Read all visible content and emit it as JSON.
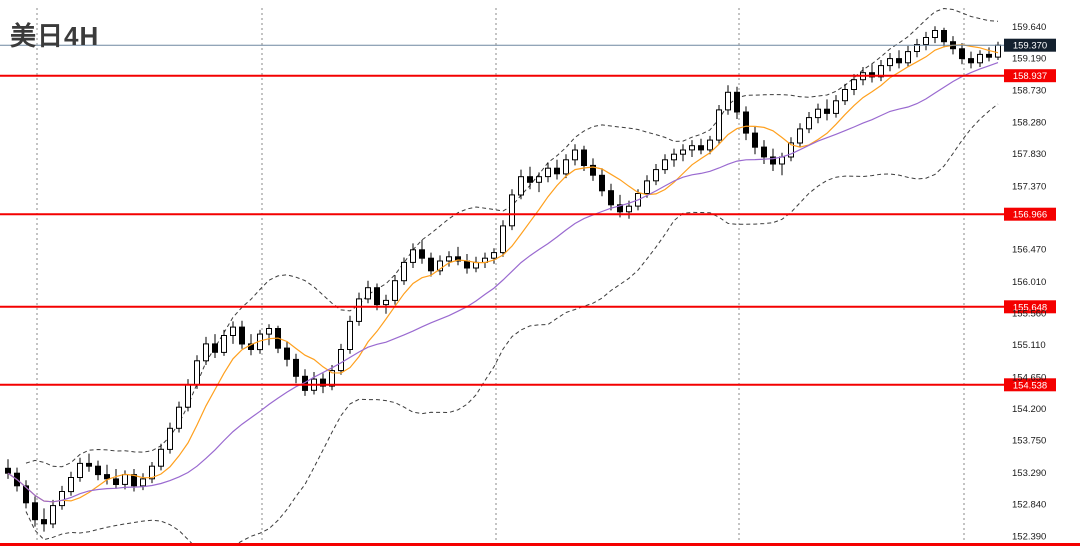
{
  "window": {
    "title": "美日4H"
  },
  "chart_data": {
    "type": "candlestick",
    "title": "美日4H",
    "current_price": {
      "label": "159.370",
      "price": 159.37
    },
    "price_scale": {
      "max": 159.9,
      "min": 152.33
    },
    "y_tick_labels": [
      "159.640",
      "159.190",
      "158.730",
      "158.280",
      "157.830",
      "157.370",
      "156.470",
      "156.010",
      "155.560",
      "155.110",
      "154.650",
      "154.200",
      "153.750",
      "153.290",
      "152.840",
      "152.390"
    ],
    "levels": [
      {
        "label": "158.937",
        "price": 158.937
      },
      {
        "label": "156.966",
        "price": 156.966
      },
      {
        "label": "155.648",
        "price": 155.648
      },
      {
        "label": "154.538",
        "price": 154.538
      }
    ],
    "separators_at_candle": [
      3,
      28,
      54,
      81,
      106
    ],
    "indicators": {
      "ma_fast": {
        "type": "sma",
        "period": 7
      },
      "ma_slow": {
        "type": "sma",
        "period": 20
      },
      "bollinger": {
        "period": 20,
        "deviation": 2
      }
    },
    "colors": {
      "level_line": "#f40000",
      "level_box": "#f40000",
      "level_text": "#ffffff",
      "current_line": "#6e87a0",
      "current_box": "#13202e",
      "current_text": "#ffffff",
      "grid": "#8a8a8a",
      "band": "#3c3c3c",
      "ma_fast": "#ffa01e",
      "ma_slow": "#9a6ad0",
      "axis_text": "#1a1a1a",
      "up_fill": "#ffffff",
      "down_fill": "#000000",
      "outline": "#000000"
    },
    "candles": [
      [
        153.35,
        153.48,
        153.2,
        153.28
      ],
      [
        153.28,
        153.36,
        153.02,
        153.1
      ],
      [
        153.1,
        153.18,
        152.78,
        152.86
      ],
      [
        152.86,
        152.95,
        152.52,
        152.62
      ],
      [
        152.62,
        152.78,
        152.45,
        152.56
      ],
      [
        152.56,
        152.9,
        152.5,
        152.82
      ],
      [
        152.82,
        153.1,
        152.76,
        153.02
      ],
      [
        153.02,
        153.3,
        152.96,
        153.22
      ],
      [
        153.22,
        153.5,
        153.16,
        153.42
      ],
      [
        153.42,
        153.56,
        153.3,
        153.38
      ],
      [
        153.38,
        153.46,
        153.18,
        153.26
      ],
      [
        153.26,
        153.4,
        153.12,
        153.2
      ],
      [
        153.2,
        153.34,
        153.06,
        153.12
      ],
      [
        153.12,
        153.32,
        153.05,
        153.26
      ],
      [
        153.26,
        153.34,
        153.02,
        153.1
      ],
      [
        153.1,
        153.28,
        153.04,
        153.2
      ],
      [
        153.2,
        153.44,
        153.14,
        153.38
      ],
      [
        153.38,
        153.7,
        153.32,
        153.62
      ],
      [
        153.62,
        154.0,
        153.56,
        153.92
      ],
      [
        153.92,
        154.3,
        153.86,
        154.22
      ],
      [
        154.22,
        154.62,
        154.16,
        154.54
      ],
      [
        154.54,
        154.96,
        154.48,
        154.88
      ],
      [
        154.88,
        155.22,
        154.82,
        155.12
      ],
      [
        155.12,
        155.26,
        154.92,
        155.0
      ],
      [
        155.0,
        155.32,
        154.95,
        155.24
      ],
      [
        155.24,
        155.44,
        155.12,
        155.36
      ],
      [
        155.36,
        155.45,
        155.05,
        155.12
      ],
      [
        155.12,
        155.26,
        154.96,
        155.04
      ],
      [
        155.04,
        155.32,
        154.98,
        155.26
      ],
      [
        155.26,
        155.4,
        155.1,
        155.34
      ],
      [
        155.34,
        155.38,
        154.99,
        155.06
      ],
      [
        155.06,
        155.16,
        154.8,
        154.9
      ],
      [
        154.9,
        154.98,
        154.56,
        154.66
      ],
      [
        154.66,
        154.76,
        154.38,
        154.46
      ],
      [
        154.46,
        154.72,
        154.4,
        154.62
      ],
      [
        154.62,
        154.7,
        154.42,
        154.52
      ],
      [
        154.52,
        154.82,
        154.46,
        154.74
      ],
      [
        154.74,
        155.12,
        154.68,
        155.04
      ],
      [
        155.04,
        155.52,
        154.98,
        155.44
      ],
      [
        155.44,
        155.85,
        155.38,
        155.76
      ],
      [
        155.76,
        156.02,
        155.7,
        155.92
      ],
      [
        155.92,
        155.98,
        155.6,
        155.68
      ],
      [
        155.68,
        155.82,
        155.55,
        155.74
      ],
      [
        155.74,
        156.1,
        155.68,
        156.02
      ],
      [
        156.02,
        156.35,
        155.96,
        156.28
      ],
      [
        156.28,
        156.55,
        156.2,
        156.46
      ],
      [
        156.46,
        156.6,
        156.26,
        156.34
      ],
      [
        156.34,
        156.42,
        156.08,
        156.16
      ],
      [
        156.16,
        156.38,
        156.1,
        156.3
      ],
      [
        156.3,
        156.44,
        156.22,
        156.36
      ],
      [
        156.36,
        156.5,
        156.24,
        156.3
      ],
      [
        156.3,
        156.4,
        156.12,
        156.2
      ],
      [
        156.2,
        156.36,
        156.14,
        156.28
      ],
      [
        156.28,
        156.42,
        156.2,
        156.34
      ],
      [
        156.34,
        156.48,
        156.26,
        156.42
      ],
      [
        156.42,
        156.88,
        156.36,
        156.8
      ],
      [
        156.8,
        157.32,
        156.74,
        157.24
      ],
      [
        157.24,
        157.6,
        157.18,
        157.5
      ],
      [
        157.5,
        157.64,
        157.32,
        157.42
      ],
      [
        157.42,
        157.56,
        157.28,
        157.5
      ],
      [
        157.5,
        157.7,
        157.42,
        157.62
      ],
      [
        157.62,
        157.74,
        157.46,
        157.54
      ],
      [
        157.54,
        157.82,
        157.48,
        157.74
      ],
      [
        157.74,
        157.96,
        157.66,
        157.88
      ],
      [
        157.88,
        157.94,
        157.58,
        157.66
      ],
      [
        157.66,
        157.76,
        157.44,
        157.52
      ],
      [
        157.52,
        157.62,
        157.22,
        157.3
      ],
      [
        157.3,
        157.4,
        157.02,
        157.1
      ],
      [
        157.1,
        157.24,
        156.92,
        157.0
      ],
      [
        157.0,
        157.16,
        156.9,
        157.08
      ],
      [
        157.08,
        157.32,
        157.02,
        157.26
      ],
      [
        157.26,
        157.52,
        157.2,
        157.44
      ],
      [
        157.44,
        157.68,
        157.38,
        157.6
      ],
      [
        157.6,
        157.82,
        157.54,
        157.74
      ],
      [
        157.74,
        157.9,
        157.64,
        157.82
      ],
      [
        157.82,
        157.96,
        157.72,
        157.88
      ],
      [
        157.88,
        158.02,
        157.78,
        157.94
      ],
      [
        157.94,
        158.04,
        157.82,
        157.88
      ],
      [
        157.88,
        158.08,
        157.82,
        158.02
      ],
      [
        158.02,
        158.52,
        157.96,
        158.45
      ],
      [
        158.45,
        158.8,
        158.38,
        158.7
      ],
      [
        158.7,
        158.78,
        158.32,
        158.42
      ],
      [
        158.42,
        158.5,
        158.02,
        158.12
      ],
      [
        158.12,
        158.22,
        157.82,
        157.92
      ],
      [
        157.92,
        158.02,
        157.68,
        157.78
      ],
      [
        157.78,
        157.9,
        157.58,
        157.68
      ],
      [
        157.68,
        157.84,
        157.52,
        157.78
      ],
      [
        157.78,
        158.06,
        157.72,
        157.98
      ],
      [
        157.98,
        158.26,
        157.92,
        158.18
      ],
      [
        158.18,
        158.42,
        158.12,
        158.34
      ],
      [
        158.34,
        158.54,
        158.26,
        158.46
      ],
      [
        158.46,
        158.6,
        158.3,
        158.4
      ],
      [
        158.4,
        158.66,
        158.34,
        158.58
      ],
      [
        158.58,
        158.82,
        158.52,
        158.74
      ],
      [
        158.74,
        158.96,
        158.66,
        158.88
      ],
      [
        158.88,
        159.06,
        158.8,
        158.98
      ],
      [
        158.98,
        159.1,
        158.84,
        158.92
      ],
      [
        158.92,
        159.16,
        158.86,
        159.08
      ],
      [
        159.08,
        159.26,
        159.0,
        159.18
      ],
      [
        159.18,
        159.3,
        159.04,
        159.12
      ],
      [
        159.12,
        159.36,
        159.06,
        159.28
      ],
      [
        159.28,
        159.46,
        159.2,
        159.38
      ],
      [
        159.38,
        159.56,
        159.3,
        159.48
      ],
      [
        159.48,
        159.64,
        159.4,
        159.58
      ],
      [
        159.58,
        159.62,
        159.34,
        159.42
      ],
      [
        159.42,
        159.5,
        159.24,
        159.32
      ],
      [
        159.32,
        159.4,
        159.1,
        159.18
      ],
      [
        159.18,
        159.28,
        159.04,
        159.12
      ],
      [
        159.12,
        159.3,
        159.06,
        159.24
      ],
      [
        159.24,
        159.34,
        159.14,
        159.2
      ],
      [
        159.2,
        159.42,
        159.16,
        159.37
      ]
    ]
  }
}
